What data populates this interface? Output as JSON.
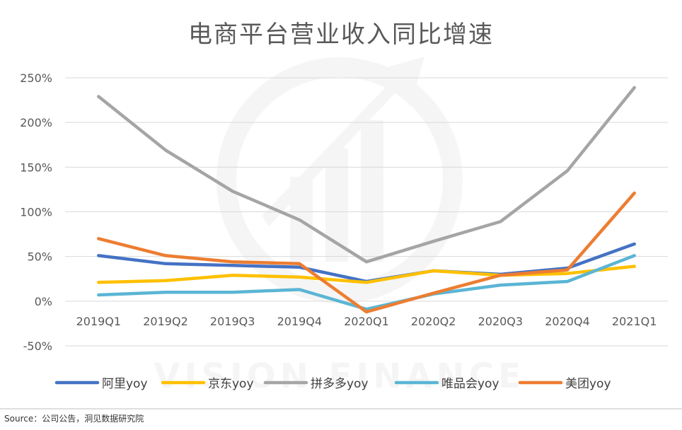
{
  "source_note": "Source：公司公告，洞见数据研究院",
  "watermark_text": "VISION FINANCE",
  "chart_data": {
    "type": "line",
    "title": "电商平台营业收入同比增速",
    "xlabel": "",
    "ylabel": "",
    "categories": [
      "2019Q1",
      "2019Q2",
      "2019Q3",
      "2019Q4",
      "2020Q1",
      "2020Q2",
      "2020Q3",
      "2020Q4",
      "2021Q1"
    ],
    "y_ticks": [
      "250%",
      "200%",
      "150%",
      "100%",
      "50%",
      "0%",
      "-50%"
    ],
    "ylim": [
      -50,
      250
    ],
    "grid": true,
    "legend_position": "bottom",
    "series": [
      {
        "name": "阿里yoy",
        "color": "#4472C4",
        "values": [
          51,
          42,
          40,
          38,
          22,
          34,
          30,
          37,
          64
        ]
      },
      {
        "name": "京东yoy",
        "color": "#FFC000",
        "values": [
          21,
          23,
          29,
          27,
          21,
          34,
          29,
          31,
          39
        ]
      },
      {
        "name": "拼多多yoy",
        "color": "#A5A5A5",
        "values": [
          229,
          169,
          123,
          91,
          44,
          67,
          89,
          146,
          239
        ]
      },
      {
        "name": "唯品会yoy",
        "color": "#5BB5D5",
        "values": [
          7,
          10,
          10,
          13,
          -9,
          8,
          18,
          22,
          51
        ]
      },
      {
        "name": "美团yoy",
        "color": "#ED7D31",
        "values": [
          70,
          51,
          44,
          42,
          -12,
          9,
          29,
          35,
          121
        ]
      }
    ]
  }
}
